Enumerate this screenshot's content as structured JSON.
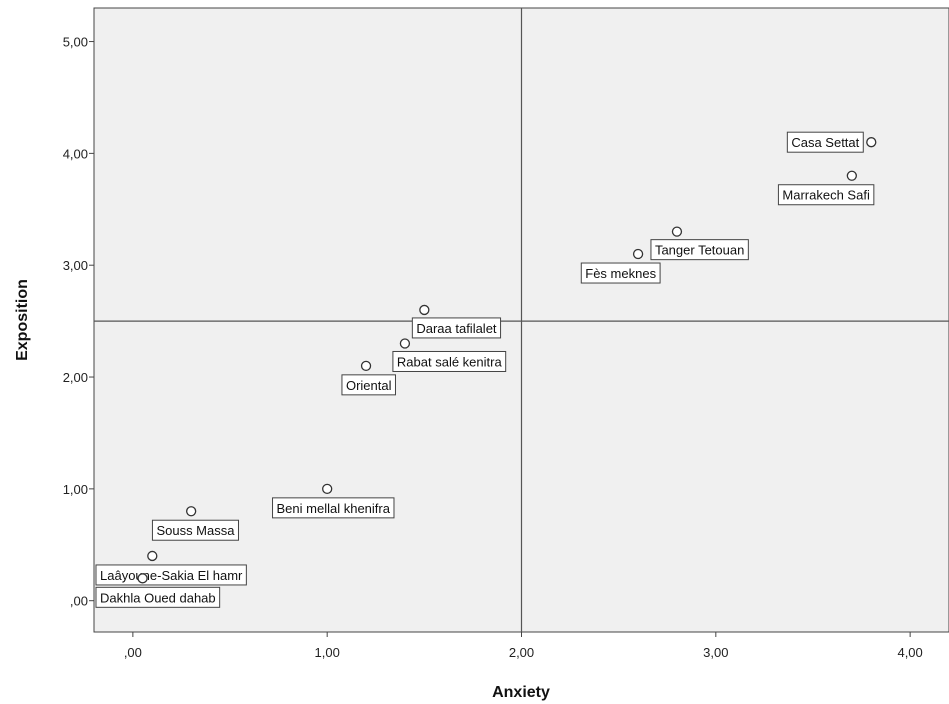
{
  "chart_data": {
    "type": "scatter",
    "xlabel": "Anxiety",
    "ylabel": "Exposition",
    "xlim": [
      -0.2,
      4.2
    ],
    "ylim": [
      -0.28,
      5.3
    ],
    "x_ticks": [
      0,
      1,
      2,
      3,
      4
    ],
    "x_tick_labels": [
      ",00",
      "1,00",
      "2,00",
      "3,00",
      "4,00"
    ],
    "y_ticks": [
      0,
      1,
      2,
      3,
      4,
      5
    ],
    "y_tick_labels": [
      ",00",
      "1,00",
      "2,00",
      "3,00",
      "4,00",
      "5,00"
    ],
    "reference_lines": {
      "x": 2.0,
      "y": 2.5
    },
    "grid": false,
    "points": [
      {
        "label": "Casa Settat",
        "x": 3.8,
        "y": 4.1
      },
      {
        "label": "Marrakech Safi",
        "x": 3.7,
        "y": 3.8
      },
      {
        "label": "Tanger Tetouan",
        "x": 2.8,
        "y": 3.3
      },
      {
        "label": "Fès meknes",
        "x": 2.6,
        "y": 3.1
      },
      {
        "label": "Daraa tafilalet",
        "x": 1.5,
        "y": 2.6
      },
      {
        "label": "Rabat salé kenitra",
        "x": 1.4,
        "y": 2.3
      },
      {
        "label": "Oriental",
        "x": 1.2,
        "y": 2.1
      },
      {
        "label": "Beni mellal khenifra",
        "x": 1.0,
        "y": 1.0
      },
      {
        "label": "Souss Massa",
        "x": 0.3,
        "y": 0.8
      },
      {
        "label": "Laâyoune-Sakia El hamr",
        "x": 0.1,
        "y": 0.4
      },
      {
        "label": "Dakhla Oued dahab",
        "x": 0.05,
        "y": 0.2
      }
    ],
    "colors": {
      "plot_background": "#f0f0f0",
      "marker": "#333333",
      "reference_line": "#555555"
    }
  }
}
